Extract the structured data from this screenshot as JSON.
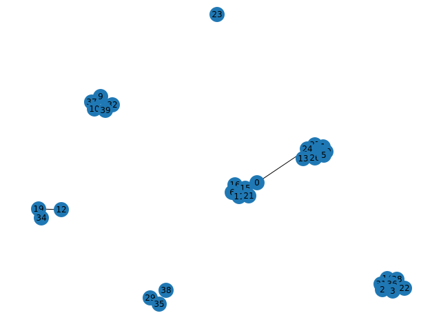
{
  "graph": {
    "node_color": "#1f78b4",
    "edge_color": "#000000",
    "label_color": "#000000",
    "nodes": [
      {
        "id": "23"
      },
      {
        "id": "9"
      },
      {
        "id": "37"
      },
      {
        "id": "32"
      },
      {
        "id": "10"
      },
      {
        "id": "39"
      },
      {
        "id": "27"
      },
      {
        "id": "1"
      },
      {
        "id": "24"
      },
      {
        "id": "30"
      },
      {
        "id": "13"
      },
      {
        "id": "26"
      },
      {
        "id": "5"
      },
      {
        "id": "16"
      },
      {
        "id": "15"
      },
      {
        "id": "0"
      },
      {
        "id": "6"
      },
      {
        "id": "11"
      },
      {
        "id": "21"
      },
      {
        "id": "19"
      },
      {
        "id": "12"
      },
      {
        "id": "34"
      },
      {
        "id": "38"
      },
      {
        "id": "29"
      },
      {
        "id": "35"
      },
      {
        "id": "14"
      },
      {
        "id": "28"
      },
      {
        "id": "31"
      },
      {
        "id": "36"
      },
      {
        "id": "2"
      },
      {
        "id": "3"
      },
      {
        "id": "22"
      }
    ],
    "edges": [
      {
        "source": "0",
        "target": "24"
      },
      {
        "source": "19",
        "target": "12"
      },
      {
        "source": "19",
        "target": "34"
      }
    ]
  }
}
